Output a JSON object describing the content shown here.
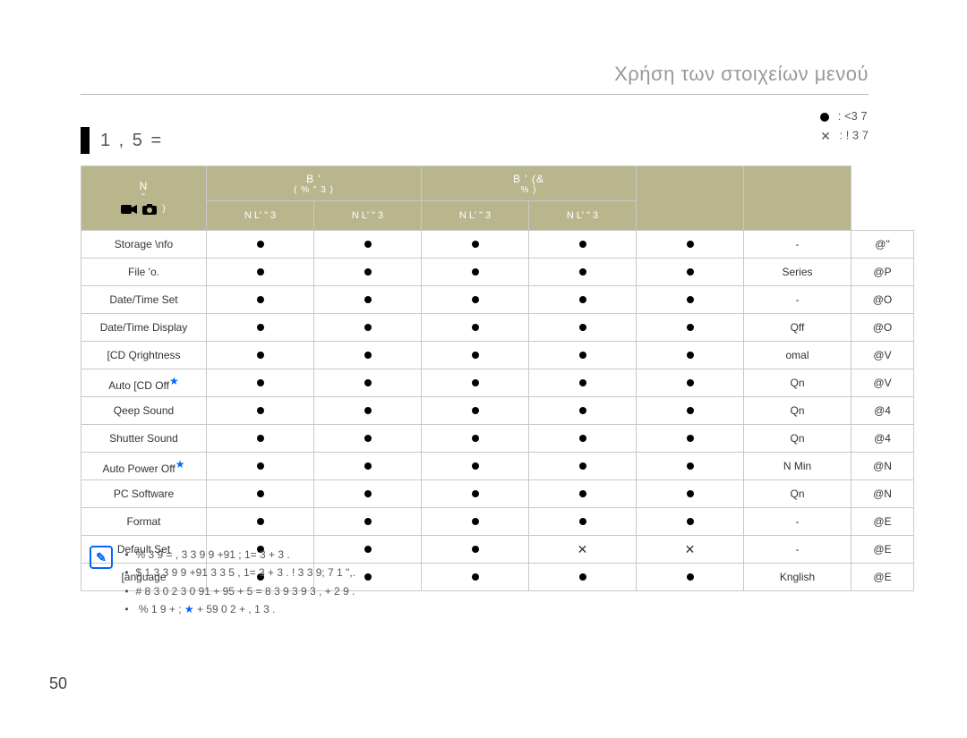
{
  "breadcrumb": "Χρήση των στοιχείων μενού",
  "legend": {
    "available": ": <3   7",
    "not_available": ": !  3   7"
  },
  "section_title": "1     ,   5   =",
  "table": {
    "header": {
      "name": "N",
      "rec_video": "B         '",
      "rec_video_sub": "(   %     \" 3 )",
      "rec_photo": "B       '   (&",
      "rec_photo_sub": "%         )",
      "play_video": "N        L'   \" 3",
      "play_photo": "N        L'   \" 3",
      "default": "",
      "page": ""
    },
    "header_icons": "\"",
    "rows": [
      {
        "name": "Storage \\nfo",
        "star": false,
        "c": [
          "dot",
          "dot",
          "dot",
          "dot",
          "dot"
        ],
        "def": "-",
        "page": "@\""
      },
      {
        "name": "File 'o.",
        "star": false,
        "c": [
          "dot",
          "dot",
          "dot",
          "dot",
          "dot"
        ],
        "def": "Series",
        "page": "@P"
      },
      {
        "name": "Date/Time Set",
        "star": false,
        "c": [
          "dot",
          "dot",
          "dot",
          "dot",
          "dot"
        ],
        "def": "-",
        "page": "@O"
      },
      {
        "name": "Date/Time Display",
        "star": false,
        "c": [
          "dot",
          "dot",
          "dot",
          "dot",
          "dot"
        ],
        "def": "Qff",
        "page": "@O"
      },
      {
        "name": "[CD Qrightness",
        "star": false,
        "c": [
          "dot",
          "dot",
          "dot",
          "dot",
          "dot"
        ],
        "def": "omal",
        "page": "@V"
      },
      {
        "name": "Auto [CD Off",
        "star": true,
        "c": [
          "dot",
          "dot",
          "dot",
          "dot",
          "dot"
        ],
        "def": "Qn",
        "page": "@V"
      },
      {
        "name": "Qeep Sound",
        "star": false,
        "c": [
          "dot",
          "dot",
          "dot",
          "dot",
          "dot"
        ],
        "def": "Qn",
        "page": "@4"
      },
      {
        "name": "Shutter Sound",
        "star": false,
        "c": [
          "dot",
          "dot",
          "dot",
          "dot",
          "dot"
        ],
        "def": "Qn",
        "page": "@4"
      },
      {
        "name": "Auto Power Off",
        "star": true,
        "c": [
          "dot",
          "dot",
          "dot",
          "dot",
          "dot"
        ],
        "def": "N Min",
        "page": "@N"
      },
      {
        "name": "PC Software",
        "star": false,
        "c": [
          "dot",
          "dot",
          "dot",
          "dot",
          "dot"
        ],
        "def": "Qn",
        "page": "@N"
      },
      {
        "name": "Format",
        "star": false,
        "c": [
          "dot",
          "dot",
          "dot",
          "dot",
          "dot"
        ],
        "def": "-",
        "page": "@E"
      },
      {
        "name": "Default Set",
        "star": false,
        "c": [
          "dot",
          "dot",
          "dot",
          "cross",
          "cross"
        ],
        "def": "-",
        "page": "@E"
      },
      {
        "name": "[anguage",
        "star": false,
        "c": [
          "dot",
          "dot",
          "dot",
          "dot",
          "dot"
        ],
        "def": "Knglish",
        "page": "@E"
      }
    ]
  },
  "notes": {
    "line1": "%  3   9   =   ,     3  3   9     9  +91        ;  1=   3  + 3   .",
    "line2": "$       1      3  3   9     9    +91              3 3  5 ,  1=   3  + 3   . !          3        3  9;        7   1       \",.",
    "line3": "#      8  3  0        2        3  0   91     +  95 +   5   =        8      3   9     3  9                                 3   , +  2     9 .",
    "line4": "%      1       9 +  ;   ★   + 59            0                 2 +        ,     1     3      ."
  },
  "page_number": "50",
  "colors": {
    "header_bg": "#b9b68e",
    "header_fg": "#ffffff",
    "border": "#c9c9c9",
    "accent_blue": "#0066ff"
  }
}
